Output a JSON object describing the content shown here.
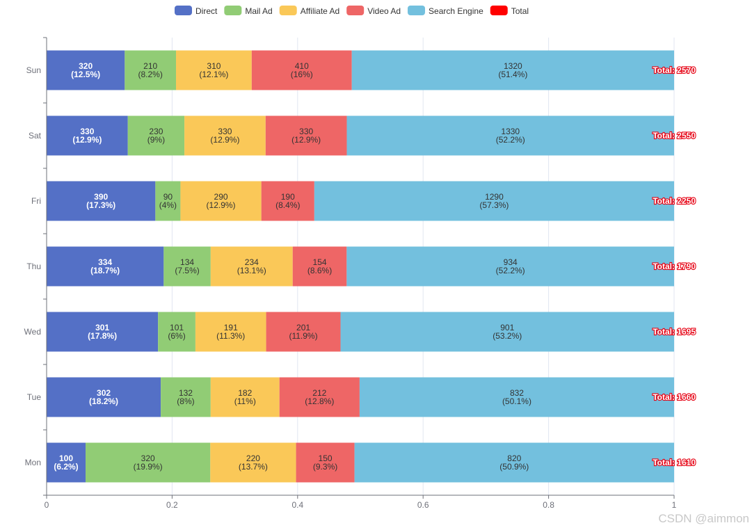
{
  "watermark": "CSDN @aimmon",
  "chart_data": {
    "type": "bar",
    "orientation": "horizontal",
    "stacked": true,
    "normalized": true,
    "categories": [
      "Mon",
      "Tue",
      "Wed",
      "Thu",
      "Fri",
      "Sat",
      "Sun"
    ],
    "series": [
      {
        "name": "Direct",
        "color": "#5470c6",
        "values": [
          100,
          302,
          301,
          334,
          390,
          330,
          320
        ],
        "labels": [
          "100\n(6.2%)",
          "302\n(18.2%)",
          "301\n(17.8%)",
          "334\n(18.7%)",
          "390\n(17.3%)",
          "330\n(12.9%)",
          "320\n(12.5%)"
        ]
      },
      {
        "name": "Mail Ad",
        "color": "#91cc75",
        "values": [
          320,
          132,
          101,
          134,
          90,
          230,
          210
        ],
        "labels": [
          "320\n(19.9%)",
          "132\n(8%)",
          "101\n(6%)",
          "134\n(7.5%)",
          "90\n(4%)",
          "230\n(9%)",
          "210\n(8.2%)"
        ]
      },
      {
        "name": "Affiliate Ad",
        "color": "#fac858",
        "values": [
          220,
          182,
          191,
          234,
          290,
          330,
          310
        ],
        "labels": [
          "220\n(13.7%)",
          "182\n(11%)",
          "191\n(11.3%)",
          "234\n(13.1%)",
          "290\n(12.9%)",
          "330\n(12.9%)",
          "310\n(12.1%)"
        ]
      },
      {
        "name": "Video Ad",
        "color": "#ee6666",
        "values": [
          150,
          212,
          201,
          154,
          190,
          330,
          410
        ],
        "labels": [
          "150\n(9.3%)",
          "212\n(12.8%)",
          "201\n(11.9%)",
          "154\n(8.6%)",
          "190\n(8.4%)",
          "330\n(12.9%)",
          "410\n(16%)"
        ]
      },
      {
        "name": "Search Engine",
        "color": "#73c0de",
        "values": [
          820,
          832,
          901,
          934,
          1290,
          1330,
          1320
        ],
        "labels": [
          "820\n(50.9%)",
          "832\n(50.1%)",
          "901\n(53.2%)",
          "934\n(52.2%)",
          "1290\n(57.3%)",
          "1330\n(52.2%)",
          "1320\n(51.4%)"
        ]
      }
    ],
    "total": {
      "name": "Total",
      "color": "#ff0000",
      "values": [
        1610,
        1660,
        1695,
        1790,
        2250,
        2550,
        2570
      ],
      "labels": [
        "Total: 1610",
        "Total: 1660",
        "Total: 1695",
        "Total: 1790",
        "Total: 2250",
        "Total: 2550",
        "Total: 2570"
      ]
    },
    "xlim": [
      0,
      1
    ],
    "xticks": [
      "0",
      "0.2",
      "0.4",
      "0.6",
      "0.8",
      "1"
    ],
    "grid": true,
    "legend_position": "top-center"
  }
}
